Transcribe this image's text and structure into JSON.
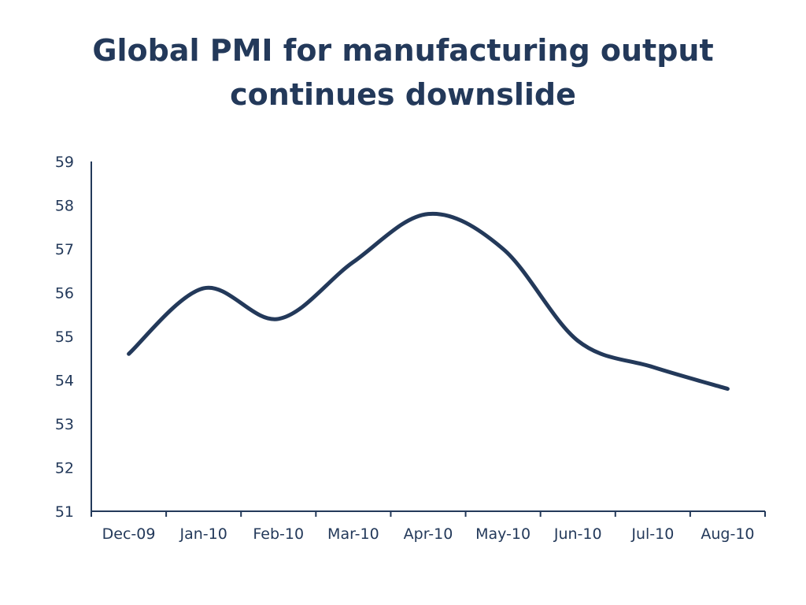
{
  "slide": {
    "title_line1": "Global PMI for manufacturing  output",
    "title_line2": "continues downslide"
  },
  "chart_data": {
    "type": "line",
    "title": "Global PMI for manufacturing  output continues downslide",
    "xlabel": "",
    "ylabel": "",
    "categories": [
      "Dec-09",
      "Jan-10",
      "Feb-10",
      "Mar-10",
      "Apr-10",
      "May-10",
      "Jun-10",
      "Jul-10",
      "Aug-10"
    ],
    "series": [
      {
        "values": [
          54.6,
          56.1,
          55.4,
          56.7,
          57.8,
          57.0,
          54.9,
          54.3,
          53.8
        ],
        "color": "#23395a"
      }
    ],
    "ylim": [
      51,
      59
    ],
    "yticks": [
      51,
      52,
      53,
      54,
      55,
      56,
      57,
      58,
      59
    ],
    "grid": false,
    "legend": "none",
    "smooth": true
  }
}
